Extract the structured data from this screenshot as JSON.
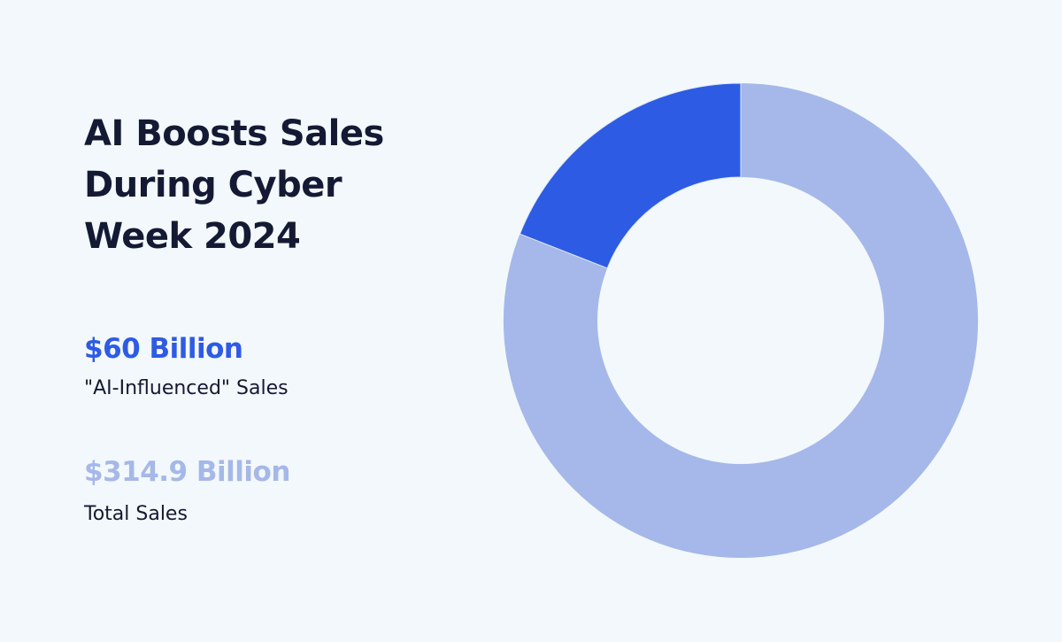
{
  "chart_data": {
    "type": "donut",
    "title": "AI Boosts Sales During Cyber Week 2024",
    "categories": [
      "\"AI-Influenced\" Sales",
      "Total Sales"
    ],
    "values": [
      60,
      314.9
    ],
    "value_labels": [
      "$60 Billion",
      "$314.9 Billion"
    ],
    "colors": [
      "#2d5be3",
      "#a5b8e9"
    ]
  }
}
